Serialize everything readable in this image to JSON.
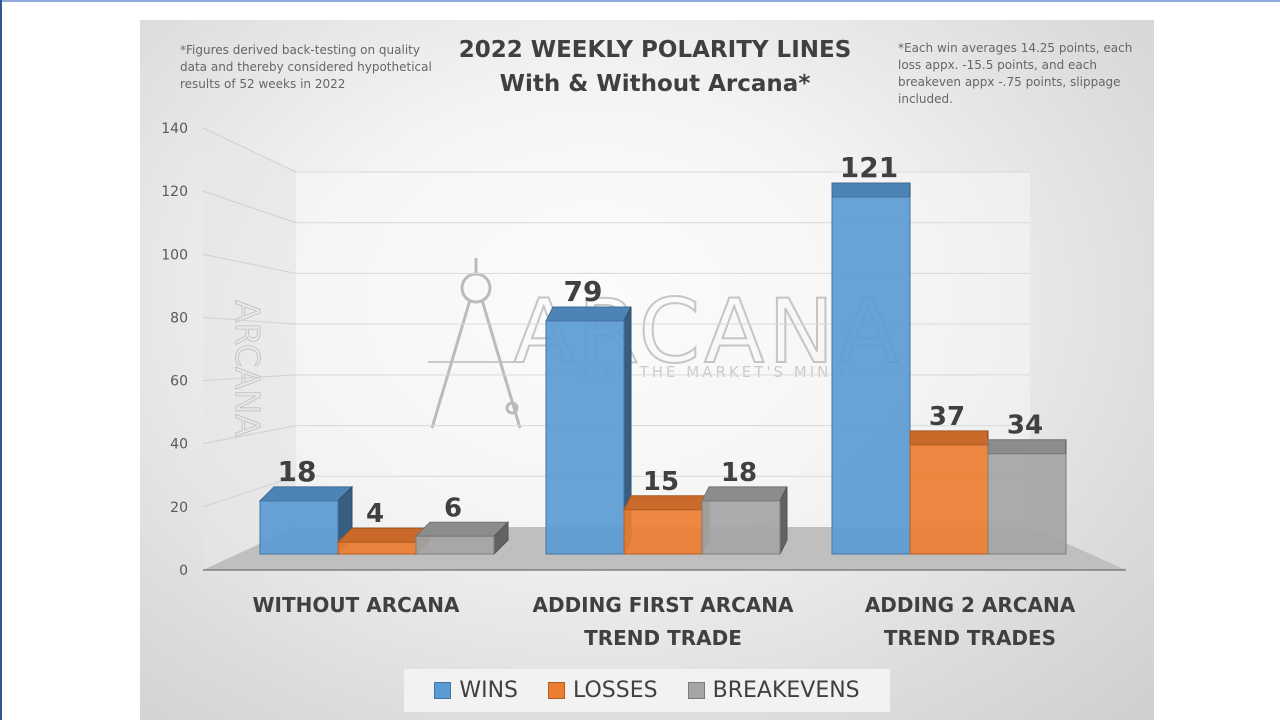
{
  "chart_data": {
    "type": "bar",
    "title": [
      "2022 WEEKLY POLARITY LINES",
      "With & Without Arcana*"
    ],
    "categories": [
      [
        "WITHOUT ARCANA"
      ],
      [
        "ADDING FIRST ARCANA",
        "TREND TRADE"
      ],
      [
        "ADDING 2 ARCANA",
        "TREND TRADES"
      ]
    ],
    "series": [
      {
        "name": "WINS",
        "values": [
          18,
          79,
          121
        ],
        "color": "#5b9bd5"
      },
      {
        "name": "LOSSES",
        "values": [
          4,
          15,
          37
        ],
        "color": "#ed7d31"
      },
      {
        "name": "BREAKEVENS",
        "values": [
          6,
          18,
          34
        ],
        "color": "#a5a5a5"
      }
    ],
    "ylim": [
      0,
      140
    ],
    "yticks": [
      0,
      20,
      40,
      60,
      80,
      100,
      120,
      140
    ],
    "grid": true,
    "legend_position": "bottom",
    "style": "3d-clustered-column"
  },
  "notes": {
    "left": "*Figures derived back-testing on quality data and thereby considered hypothetical results of 52 weeks in 2022",
    "right": "*Each win averages 14.25 points, each loss appx. -15.5 points, and each breakeven appx -.75 points, slippage included."
  },
  "watermark": {
    "brand": "ARCANA",
    "tagline": "READ THE MARKET'S MIND",
    "icon": "compass-icon"
  }
}
